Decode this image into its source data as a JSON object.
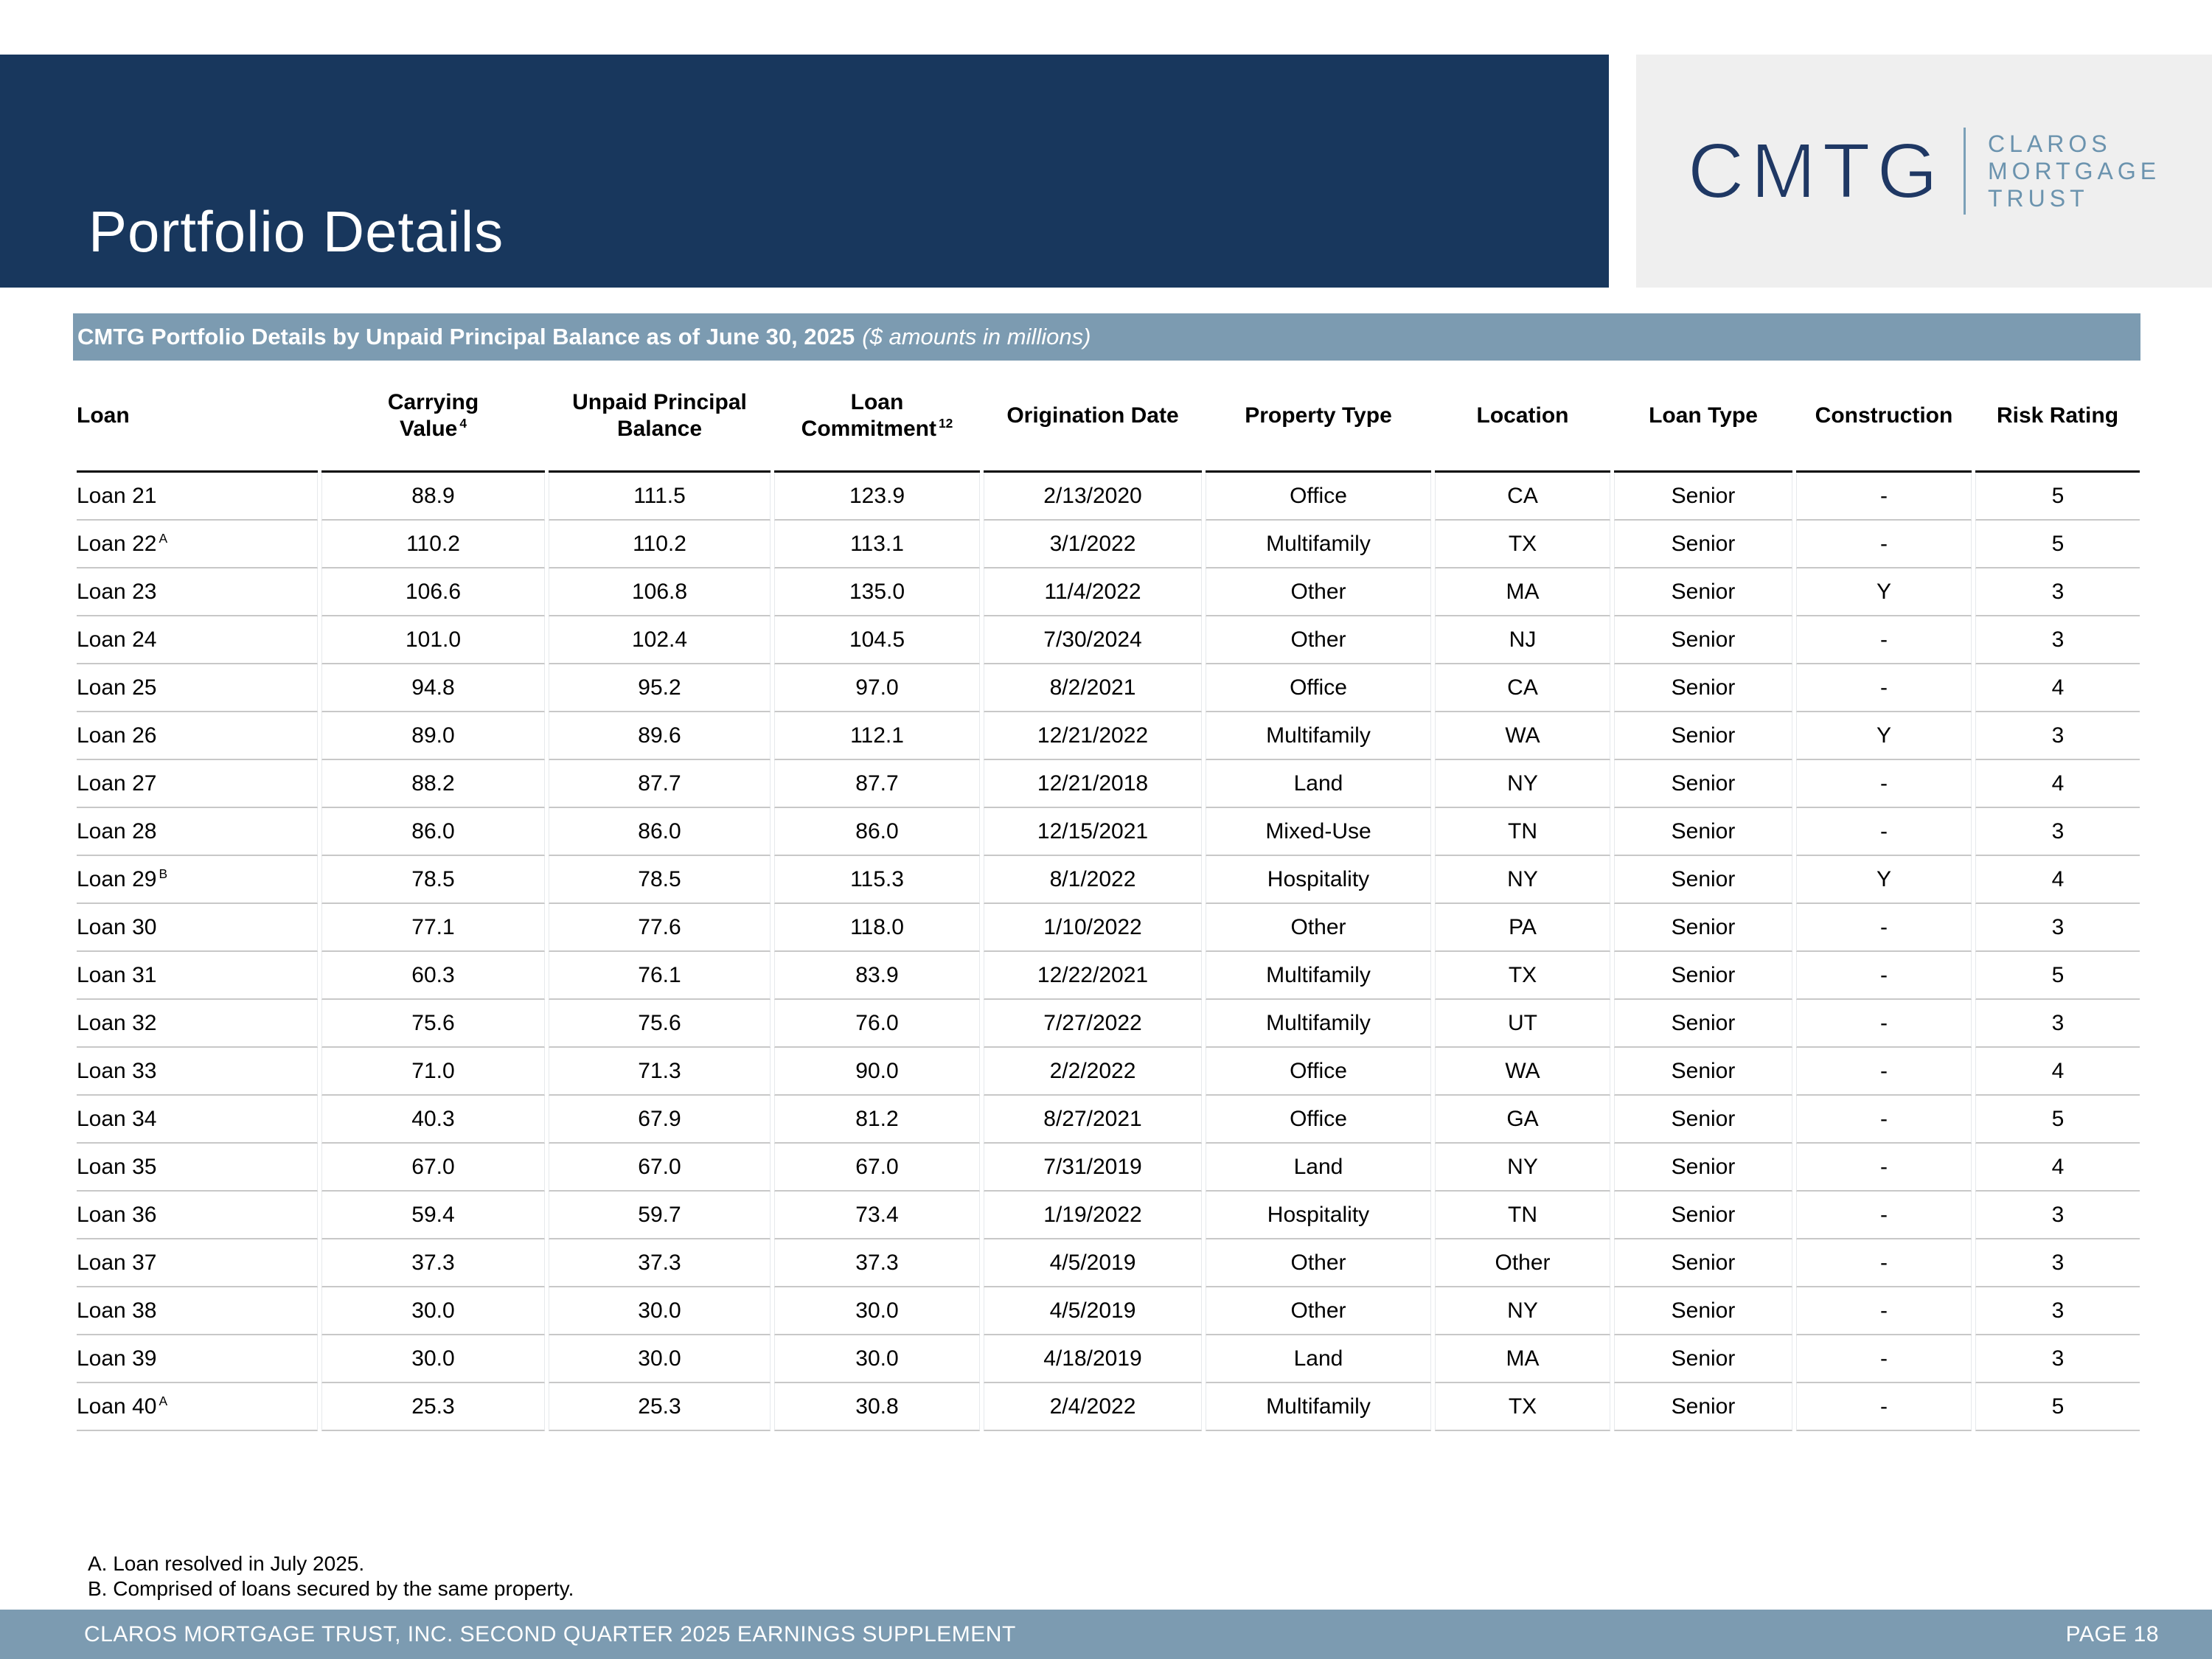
{
  "header": {
    "title": "Portfolio Details"
  },
  "logo": {
    "acronym": "CMTG",
    "name_lines": [
      "CLAROS",
      "MORTGAGE",
      "TRUST"
    ]
  },
  "subheader": {
    "title_bold": "CMTG Portfolio Details by Unpaid Principal Balance as of June 30, 2025",
    "title_italic": "($ amounts in millions)"
  },
  "colors": {
    "banner_navy": "#18375d",
    "bar_slate": "#7c9bb1",
    "logo_box_gray": "#efefef",
    "logo_navy": "#1f3864",
    "logo_blue": "#6b93ae"
  },
  "table": {
    "columns": [
      {
        "key": "loan",
        "lines": [
          "Loan"
        ],
        "sup": "",
        "align": "left"
      },
      {
        "key": "carrying",
        "lines": [
          "Carrying",
          "Value"
        ],
        "sup": "4",
        "align": "center"
      },
      {
        "key": "upb",
        "lines": [
          "Unpaid Principal",
          "Balance"
        ],
        "sup": "",
        "align": "center"
      },
      {
        "key": "commitment",
        "lines": [
          "Loan",
          "Commitment"
        ],
        "sup": "12",
        "align": "center"
      },
      {
        "key": "orig_date",
        "lines": [
          "Origination Date"
        ],
        "sup": "",
        "align": "center"
      },
      {
        "key": "property",
        "lines": [
          "Property Type"
        ],
        "sup": "",
        "align": "center"
      },
      {
        "key": "location",
        "lines": [
          "Location"
        ],
        "sup": "",
        "align": "center"
      },
      {
        "key": "loan_type",
        "lines": [
          "Loan Type"
        ],
        "sup": "",
        "align": "center"
      },
      {
        "key": "construction",
        "lines": [
          "Construction"
        ],
        "sup": "",
        "align": "center"
      },
      {
        "key": "risk",
        "lines": [
          "Risk Rating"
        ],
        "sup": "",
        "align": "center"
      }
    ],
    "rows": [
      {
        "loan": "Loan 21",
        "sup": "",
        "carrying": "88.9",
        "upb": "111.5",
        "commitment": "123.9",
        "orig_date": "2/13/2020",
        "property": "Office",
        "location": "CA",
        "loan_type": "Senior",
        "construction": "-",
        "risk": "5"
      },
      {
        "loan": "Loan 22",
        "sup": "A",
        "carrying": "110.2",
        "upb": "110.2",
        "commitment": "113.1",
        "orig_date": "3/1/2022",
        "property": "Multifamily",
        "location": "TX",
        "loan_type": "Senior",
        "construction": "-",
        "risk": "5"
      },
      {
        "loan": "Loan 23",
        "sup": "",
        "carrying": "106.6",
        "upb": "106.8",
        "commitment": "135.0",
        "orig_date": "11/4/2022",
        "property": "Other",
        "location": "MA",
        "loan_type": "Senior",
        "construction": "Y",
        "risk": "3"
      },
      {
        "loan": "Loan 24",
        "sup": "",
        "carrying": "101.0",
        "upb": "102.4",
        "commitment": "104.5",
        "orig_date": "7/30/2024",
        "property": "Other",
        "location": "NJ",
        "loan_type": "Senior",
        "construction": "-",
        "risk": "3"
      },
      {
        "loan": "Loan 25",
        "sup": "",
        "carrying": "94.8",
        "upb": "95.2",
        "commitment": "97.0",
        "orig_date": "8/2/2021",
        "property": "Office",
        "location": "CA",
        "loan_type": "Senior",
        "construction": "-",
        "risk": "4"
      },
      {
        "loan": "Loan 26",
        "sup": "",
        "carrying": "89.0",
        "upb": "89.6",
        "commitment": "112.1",
        "orig_date": "12/21/2022",
        "property": "Multifamily",
        "location": "WA",
        "loan_type": "Senior",
        "construction": "Y",
        "risk": "3"
      },
      {
        "loan": "Loan 27",
        "sup": "",
        "carrying": "88.2",
        "upb": "87.7",
        "commitment": "87.7",
        "orig_date": "12/21/2018",
        "property": "Land",
        "location": "NY",
        "loan_type": "Senior",
        "construction": "-",
        "risk": "4"
      },
      {
        "loan": "Loan 28",
        "sup": "",
        "carrying": "86.0",
        "upb": "86.0",
        "commitment": "86.0",
        "orig_date": "12/15/2021",
        "property": "Mixed-Use",
        "location": "TN",
        "loan_type": "Senior",
        "construction": "-",
        "risk": "3"
      },
      {
        "loan": "Loan 29",
        "sup": "B",
        "carrying": "78.5",
        "upb": "78.5",
        "commitment": "115.3",
        "orig_date": "8/1/2022",
        "property": "Hospitality",
        "location": "NY",
        "loan_type": "Senior",
        "construction": "Y",
        "risk": "4"
      },
      {
        "loan": "Loan 30",
        "sup": "",
        "carrying": "77.1",
        "upb": "77.6",
        "commitment": "118.0",
        "orig_date": "1/10/2022",
        "property": "Other",
        "location": "PA",
        "loan_type": "Senior",
        "construction": "-",
        "risk": "3"
      },
      {
        "loan": "Loan 31",
        "sup": "",
        "carrying": "60.3",
        "upb": "76.1",
        "commitment": "83.9",
        "orig_date": "12/22/2021",
        "property": "Multifamily",
        "location": "TX",
        "loan_type": "Senior",
        "construction": "-",
        "risk": "5"
      },
      {
        "loan": "Loan 32",
        "sup": "",
        "carrying": "75.6",
        "upb": "75.6",
        "commitment": "76.0",
        "orig_date": "7/27/2022",
        "property": "Multifamily",
        "location": "UT",
        "loan_type": "Senior",
        "construction": "-",
        "risk": "3"
      },
      {
        "loan": "Loan 33",
        "sup": "",
        "carrying": "71.0",
        "upb": "71.3",
        "commitment": "90.0",
        "orig_date": "2/2/2022",
        "property": "Office",
        "location": "WA",
        "loan_type": "Senior",
        "construction": "-",
        "risk": "4"
      },
      {
        "loan": "Loan 34",
        "sup": "",
        "carrying": "40.3",
        "upb": "67.9",
        "commitment": "81.2",
        "orig_date": "8/27/2021",
        "property": "Office",
        "location": "GA",
        "loan_type": "Senior",
        "construction": "-",
        "risk": "5"
      },
      {
        "loan": "Loan 35",
        "sup": "",
        "carrying": "67.0",
        "upb": "67.0",
        "commitment": "67.0",
        "orig_date": "7/31/2019",
        "property": "Land",
        "location": "NY",
        "loan_type": "Senior",
        "construction": "-",
        "risk": "4"
      },
      {
        "loan": "Loan 36",
        "sup": "",
        "carrying": "59.4",
        "upb": "59.7",
        "commitment": "73.4",
        "orig_date": "1/19/2022",
        "property": "Hospitality",
        "location": "TN",
        "loan_type": "Senior",
        "construction": "-",
        "risk": "3"
      },
      {
        "loan": "Loan 37",
        "sup": "",
        "carrying": "37.3",
        "upb": "37.3",
        "commitment": "37.3",
        "orig_date": "4/5/2019",
        "property": "Other",
        "location": "Other",
        "loan_type": "Senior",
        "construction": "-",
        "risk": "3"
      },
      {
        "loan": "Loan 38",
        "sup": "",
        "carrying": "30.0",
        "upb": "30.0",
        "commitment": "30.0",
        "orig_date": "4/5/2019",
        "property": "Other",
        "location": "NY",
        "loan_type": "Senior",
        "construction": "-",
        "risk": "3"
      },
      {
        "loan": "Loan 39",
        "sup": "",
        "carrying": "30.0",
        "upb": "30.0",
        "commitment": "30.0",
        "orig_date": "4/18/2019",
        "property": "Land",
        "location": "MA",
        "loan_type": "Senior",
        "construction": "-",
        "risk": "3"
      },
      {
        "loan": "Loan 40",
        "sup": "A",
        "carrying": "25.3",
        "upb": "25.3",
        "commitment": "30.8",
        "orig_date": "2/4/2022",
        "property": "Multifamily",
        "location": "TX",
        "loan_type": "Senior",
        "construction": "-",
        "risk": "5"
      }
    ]
  },
  "footnotes": [
    "A. Loan resolved in July 2025.",
    "B. Comprised of loans secured by the same property."
  ],
  "footer": {
    "left": "CLAROS MORTGAGE TRUST, INC. SECOND QUARTER 2025 EARNINGS SUPPLEMENT",
    "right": "PAGE 18"
  }
}
